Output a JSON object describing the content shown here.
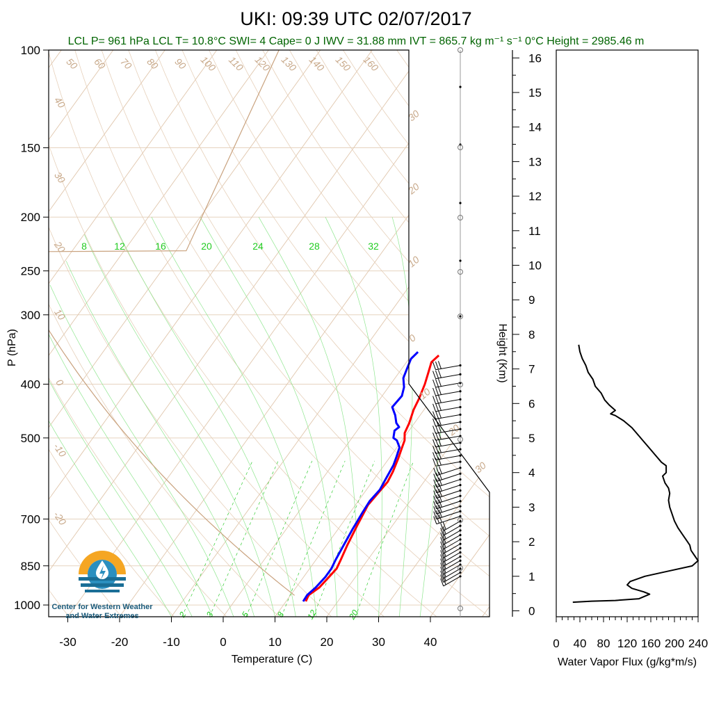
{
  "title": "UKI: 09:39 UTC 02/07/2017",
  "subtitle": "LCL P= 961 hPa  LCL T= 10.8°C  SWI= 4  Cape= 0 J  IWV = 31.88 mm  IVT = 865.7 kg m⁻¹ s⁻¹  0°C Height = 2985.46 m",
  "logo": {
    "line1": "Center for Western Weather",
    "line2": "and Water Extremes",
    "icon": "water-drop-icon"
  },
  "colors": {
    "temperature": "#ff0000",
    "dewpoint": "#0000ff",
    "isotherm": "#c8a98a",
    "mixing_ratio": "#22cc22",
    "subtitle": "#006400"
  },
  "chart_data": [
    {
      "type": "line",
      "name": "skew-t",
      "xlabel": "Temperature (C)",
      "ylabel": "P (hPa)",
      "x_ticks": [
        "-30",
        "-20",
        "-10",
        "0",
        "10",
        "20",
        "30",
        "40"
      ],
      "y_ticks": [
        "100",
        "150",
        "200",
        "250",
        "300",
        "400",
        "500",
        "700",
        "850",
        "1000"
      ],
      "y_scale": "log",
      "isotherm_labels": [
        "50",
        "60",
        "70",
        "80",
        "90",
        "100",
        "110",
        "120",
        "130",
        "140",
        "150",
        "160"
      ],
      "dry_adiabat_labels": [
        "40",
        "30",
        "20",
        "10",
        "0",
        "-10",
        "-20"
      ],
      "moist_labels_right": [
        "30",
        "20",
        "10",
        "0",
        "10",
        "20",
        "30"
      ],
      "mixing_ratio_labels_top": [
        "8",
        "12",
        "16",
        "20",
        "24",
        "28",
        "32"
      ],
      "mixing_ratio_labels_bottom": [
        "2",
        "3",
        "5",
        "8",
        "12",
        "20"
      ],
      "series": [
        {
          "name": "temperature",
          "points": [
            [
              13.8,
              985
            ],
            [
              13.5,
              960
            ],
            [
              14.5,
              930
            ],
            [
              15.0,
              880
            ],
            [
              15.2,
              860
            ],
            [
              14.8,
              830
            ],
            [
              14.0,
              780
            ],
            [
              13.2,
              720
            ],
            [
              12.4,
              660
            ],
            [
              12.8,
              620
            ],
            [
              13.0,
              600
            ],
            [
              12.6,
              575
            ],
            [
              11.8,
              545
            ],
            [
              11.0,
              520
            ],
            [
              10.5,
              505
            ],
            [
              9.5,
              490
            ],
            [
              9.0,
              470
            ],
            [
              8.0,
              445
            ],
            [
              7.5,
              425
            ],
            [
              6.6,
              400
            ],
            [
              5.6,
              380
            ],
            [
              4.8,
              365
            ],
            [
              5.3,
              355
            ]
          ]
        },
        {
          "name": "dewpoint",
          "points": [
            [
              13.3,
              985
            ],
            [
              13.2,
              960
            ],
            [
              13.8,
              930
            ],
            [
              14.2,
              890
            ],
            [
              14.2,
              860
            ],
            [
              13.8,
              830
            ],
            [
              13.3,
              780
            ],
            [
              12.8,
              730
            ],
            [
              12.4,
              680
            ],
            [
              12.2,
              650
            ],
            [
              12.6,
              620
            ],
            [
              12.2,
              590
            ],
            [
              11.8,
              560
            ],
            [
              11.2,
              540
            ],
            [
              10.5,
              520
            ],
            [
              9.0,
              505
            ],
            [
              8.0,
              500
            ],
            [
              7.2,
              485
            ],
            [
              7.6,
              478
            ],
            [
              6.5,
              470
            ],
            [
              5.2,
              455
            ],
            [
              3.5,
              440
            ],
            [
              3.8,
              420
            ],
            [
              3.0,
              405
            ],
            [
              1.6,
              390
            ],
            [
              1.0,
              375
            ],
            [
              0.4,
              360
            ],
            [
              0.8,
              350
            ]
          ]
        }
      ]
    },
    {
      "type": "line",
      "name": "water-vapor-flux",
      "xlabel": "Water Vapor Flux (g/kg*m/s)",
      "ylabel": "Height (Km)",
      "x_ticks": [
        "0",
        "40",
        "80",
        "120",
        "160",
        "200",
        "240"
      ],
      "y_ticks": [
        "0",
        "1",
        "2",
        "3",
        "4",
        "5",
        "6",
        "7",
        "8",
        "9",
        "10",
        "11",
        "12",
        "13",
        "14",
        "15",
        "16"
      ],
      "xlim": [
        0,
        240
      ],
      "ylim": [
        0,
        16.2
      ],
      "series": [
        {
          "name": "flux",
          "points": [
            [
              28,
              0.25
            ],
            [
              60,
              0.28
            ],
            [
              100,
              0.3
            ],
            [
              140,
              0.35
            ],
            [
              158,
              0.48
            ],
            [
              148,
              0.55
            ],
            [
              128,
              0.65
            ],
            [
              120,
              0.75
            ],
            [
              125,
              0.85
            ],
            [
              150,
              1.0
            ],
            [
              190,
              1.15
            ],
            [
              230,
              1.3
            ],
            [
              240,
              1.45
            ],
            [
              234,
              1.6
            ],
            [
              228,
              1.75
            ],
            [
              226,
              1.9
            ],
            [
              220,
              2.05
            ],
            [
              214,
              2.2
            ],
            [
              206,
              2.4
            ],
            [
              200,
              2.6
            ],
            [
              196,
              2.8
            ],
            [
              192,
              3.0
            ],
            [
              190,
              3.2
            ],
            [
              192,
              3.4
            ],
            [
              190,
              3.55
            ],
            [
              184,
              3.7
            ],
            [
              180,
              3.9
            ],
            [
              186,
              4.0
            ],
            [
              186,
              4.2
            ],
            [
              178,
              4.3
            ],
            [
              168,
              4.5
            ],
            [
              158,
              4.7
            ],
            [
              148,
              4.9
            ],
            [
              138,
              5.1
            ],
            [
              128,
              5.3
            ],
            [
              114,
              5.5
            ],
            [
              100,
              5.65
            ],
            [
              92,
              5.7
            ],
            [
              100,
              5.8
            ],
            [
              90,
              5.95
            ],
            [
              82,
              6.1
            ],
            [
              76,
              6.3
            ],
            [
              66,
              6.5
            ],
            [
              62,
              6.7
            ],
            [
              54,
              6.9
            ],
            [
              50,
              7.1
            ],
            [
              44,
              7.3
            ],
            [
              40,
              7.5
            ],
            [
              38,
              7.7
            ]
          ]
        }
      ]
    }
  ]
}
